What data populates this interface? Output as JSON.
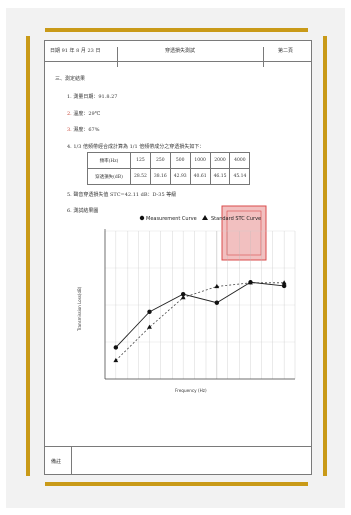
{
  "header": {
    "date": "日期 91 年 8 月 23 日",
    "title": "穿透損失測試",
    "page": "第二頁"
  },
  "section_title": "三、測定結果",
  "items": [
    {
      "num": "1.",
      "text": "測量日期：91.8.27"
    },
    {
      "num": "2.",
      "text": "溫度：29℃"
    },
    {
      "num": "3.",
      "text": "濕度：67%"
    },
    {
      "num": "4.",
      "text": "1/3 倍頻帶經合成計算為 1/1 倍頻帶成分之穿透損失如下："
    },
    {
      "num": "5.",
      "text": "聲音穿透損失值 STC=42.11 dB：D-35 等級"
    },
    {
      "num": "6.",
      "text": "測試結果圖"
    }
  ],
  "table": {
    "row1_label": "頻率(Hz)",
    "row2_label": "穿透損失(dB)",
    "freqs": [
      "125",
      "250",
      "500",
      "1000",
      "2000",
      "4000"
    ],
    "values": [
      "28.52",
      "38.16",
      "42.93",
      "40.61",
      "46.15",
      "45.14"
    ]
  },
  "footer_label": "備註",
  "chart_data": {
    "type": "line",
    "xlabel": "Frequency (Hz)",
    "ylabel": "Transmission Loss(dB)",
    "series": [
      {
        "name": "Measurement Curve",
        "x": [
          125,
          250,
          500,
          1000,
          2000,
          4000
        ],
        "values": [
          28.52,
          38.16,
          42.93,
          40.61,
          46.15,
          45.14
        ]
      },
      {
        "name": "Standard STC Curve",
        "x": [
          125,
          250,
          500,
          1000,
          2000,
          4000
        ],
        "values": [
          25,
          34,
          42,
          45,
          46,
          46
        ]
      }
    ]
  },
  "colors": {
    "frame": "#c99a18",
    "stamp": "#d94b4b",
    "red_text": "#c23a2a"
  }
}
